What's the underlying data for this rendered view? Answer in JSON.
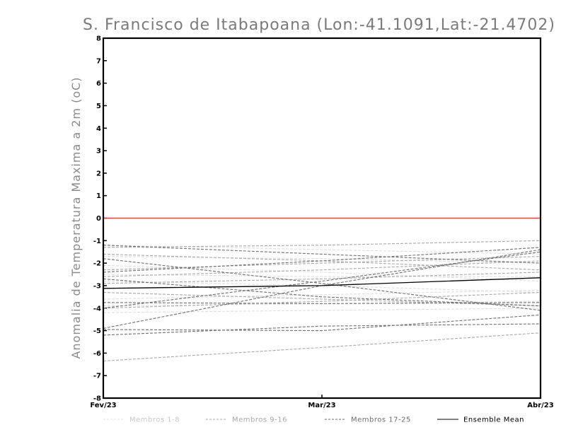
{
  "chart_data": {
    "type": "line",
    "title": "S. Francisco de Itabapoana (Lon:-41.1091,Lat:-21.4702)",
    "xlabel": "",
    "ylabel": "Anomalia de Temperatura Maxima a 2m (oC)",
    "x": [
      "Fev/23",
      "Mar/23",
      "Abr/23"
    ],
    "ylim": [
      -8,
      8
    ],
    "yticks": [
      8,
      7,
      6,
      5,
      4,
      3,
      2,
      1,
      0,
      -1,
      -2,
      -3,
      -4,
      -5,
      -6,
      -7,
      -8
    ],
    "ytick_labels": [
      "8",
      "7",
      "6",
      "5",
      "4",
      "3",
      "2",
      "1",
      "0",
      "-1",
      "-2",
      "-3",
      "-4",
      "-5",
      "-6",
      "-7",
      "-8"
    ],
    "grid": false,
    "legend_position": "bottom",
    "reference_line": {
      "y": 0,
      "color": "#ff3b30"
    },
    "groups": [
      {
        "name": "Membros 1-8",
        "color": "#dedede",
        "dashed": true,
        "series": [
          [
            -1.2,
            -1.4,
            -1.6
          ],
          [
            -1.7,
            -1.8,
            -2.0
          ],
          [
            -2.1,
            -2.4,
            -2.8
          ],
          [
            -2.8,
            -3.0,
            -3.3
          ],
          [
            -3.6,
            -3.4,
            -3.2
          ],
          [
            -3.9,
            -3.8,
            -3.7
          ],
          [
            -4.2,
            -4.1,
            -4.0
          ],
          [
            -2.5,
            -2.6,
            -2.6
          ]
        ]
      },
      {
        "name": "Membros 9-16",
        "color": "#a8a8a8",
        "dashed": true,
        "series": [
          [
            -6.35,
            -5.75,
            -5.1
          ],
          [
            -1.6,
            -1.9,
            -2.3
          ],
          [
            -2.3,
            -2.0,
            -1.7
          ],
          [
            -2.9,
            -2.7,
            -2.4
          ],
          [
            -3.3,
            -3.6,
            -3.9
          ],
          [
            -1.3,
            -1.2,
            -1.0
          ],
          [
            -4.0,
            -3.7,
            -3.3
          ],
          [
            -2.6,
            -2.3,
            -1.9
          ]
        ]
      },
      {
        "name": "Membros 17-25",
        "color": "#6e6e6e",
        "dashed": true,
        "series": [
          [
            -4.9,
            -3.0,
            -1.4
          ],
          [
            -4.0,
            -2.8,
            -1.5
          ],
          [
            -1.2,
            -1.6,
            -2.0
          ],
          [
            -1.8,
            -2.9,
            -4.1
          ],
          [
            -2.7,
            -3.5,
            -3.9
          ],
          [
            -4.95,
            -5.0,
            -4.3
          ],
          [
            -5.2,
            -4.8,
            -4.7
          ],
          [
            -3.75,
            -3.8,
            -3.75
          ],
          [
            -2.4,
            -1.9,
            -1.3
          ]
        ]
      }
    ],
    "ensemble_mean": {
      "name": "Ensemble Mean",
      "color": "#000000",
      "values": [
        -3.12,
        -3.0,
        -2.65
      ]
    }
  }
}
